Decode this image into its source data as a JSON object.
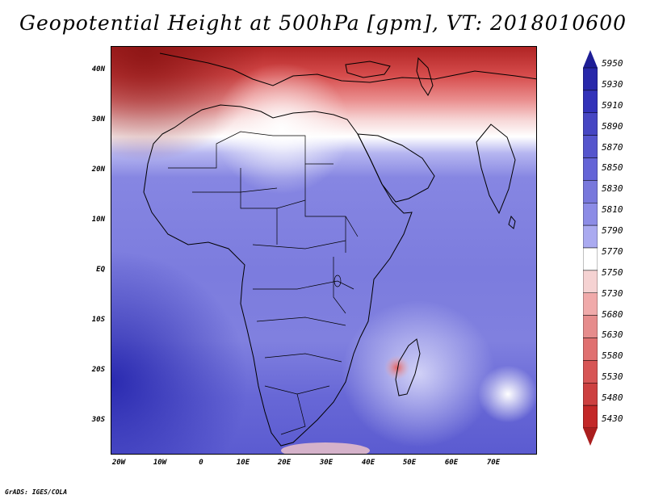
{
  "title": "Geopotential Height at 500hPa [gpm], VT: 2018010600",
  "credit": "GrADS: IGES/COLA",
  "map": {
    "lat_labels": [
      "40N",
      "30N",
      "20N",
      "10N",
      "EQ",
      "10S",
      "20S",
      "30S"
    ],
    "lon_labels": [
      "20W",
      "10W",
      "0",
      "10E",
      "20E",
      "30E",
      "40E",
      "50E",
      "60E",
      "70E"
    ]
  },
  "colorbar": {
    "levels": [
      "5950",
      "5930",
      "5910",
      "5890",
      "5870",
      "5850",
      "5830",
      "5810",
      "5790",
      "5770",
      "5750",
      "5730",
      "5680",
      "5630",
      "5580",
      "5530",
      "5480",
      "5430"
    ],
    "colors": [
      "#1e1e96",
      "#2828aa",
      "#3232b9",
      "#4646c3",
      "#5555cd",
      "#6464d7",
      "#7878dc",
      "#8c8ce6",
      "#aaaaf0",
      "#ffffff",
      "#f5d2d2",
      "#f0aaaa",
      "#e68c8c",
      "#e07070",
      "#d75555",
      "#cd4040",
      "#c32828",
      "#aa1e1e"
    ]
  }
}
